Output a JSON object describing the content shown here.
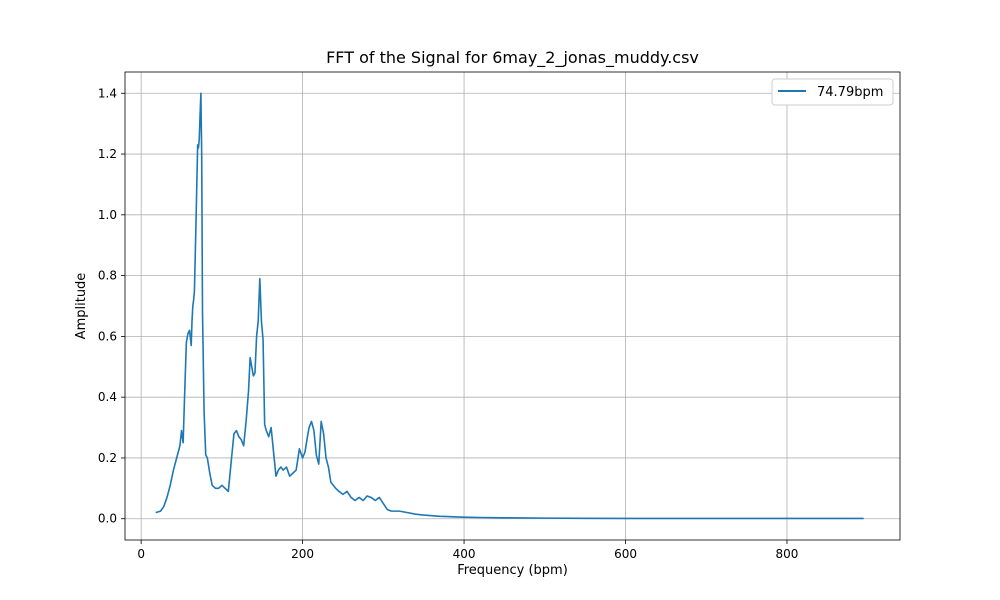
{
  "chart_data": {
    "type": "line",
    "title": "FFT of the Signal for 6may_2_jonas_muddy.csv",
    "xlabel": "Frequency (bpm)",
    "ylabel": "Amplitude",
    "xlim": [
      -20,
      940
    ],
    "ylim": [
      -0.07,
      1.47
    ],
    "xticks": [
      0,
      200,
      400,
      600,
      800
    ],
    "yticks": [
      0.0,
      0.2,
      0.4,
      0.6,
      0.8,
      1.0,
      1.2,
      1.4
    ],
    "xtick_labels": [
      "0",
      "200",
      "400",
      "600",
      "800"
    ],
    "ytick_labels": [
      "0.0",
      "0.2",
      "0.4",
      "0.6",
      "0.8",
      "1.0",
      "1.2",
      "1.4"
    ],
    "grid": true,
    "legend_position": "top-right",
    "series": [
      {
        "name": "74.79bpm",
        "color": "#1f77b4",
        "x": [
          18,
          24,
          28,
          32,
          36,
          40,
          43,
          46,
          48,
          50,
          52,
          54,
          56,
          58,
          60,
          62,
          63,
          64,
          65,
          66,
          68,
          70,
          71,
          72,
          73,
          74,
          75,
          76,
          78,
          80,
          82,
          85,
          88,
          92,
          96,
          100,
          104,
          108,
          112,
          115,
          118,
          121,
          124,
          127,
          130,
          133,
          135,
          137,
          139,
          141,
          143,
          145,
          147,
          149,
          151,
          153,
          155,
          158,
          161,
          164,
          167,
          170,
          173,
          176,
          180,
          184,
          188,
          192,
          196,
          200,
          203,
          206,
          208,
          211,
          214,
          217,
          220,
          223,
          226,
          229,
          232,
          235,
          238,
          241,
          245,
          250,
          255,
          260,
          265,
          270,
          275,
          280,
          285,
          290,
          295,
          300,
          305,
          310,
          320,
          330,
          340,
          350,
          360,
          370,
          380,
          390,
          400,
          420,
          450,
          500,
          550,
          600,
          650,
          700,
          750,
          800,
          850,
          895
        ],
        "values": [
          0.02,
          0.025,
          0.04,
          0.07,
          0.11,
          0.16,
          0.19,
          0.22,
          0.24,
          0.29,
          0.25,
          0.42,
          0.58,
          0.61,
          0.62,
          0.57,
          0.65,
          0.7,
          0.72,
          0.75,
          0.98,
          1.23,
          1.22,
          1.25,
          1.33,
          1.4,
          1.2,
          0.68,
          0.35,
          0.21,
          0.2,
          0.15,
          0.11,
          0.1,
          0.1,
          0.11,
          0.1,
          0.09,
          0.2,
          0.28,
          0.29,
          0.27,
          0.26,
          0.24,
          0.32,
          0.42,
          0.53,
          0.5,
          0.47,
          0.48,
          0.6,
          0.65,
          0.79,
          0.65,
          0.59,
          0.31,
          0.29,
          0.27,
          0.3,
          0.22,
          0.14,
          0.16,
          0.17,
          0.16,
          0.17,
          0.14,
          0.15,
          0.16,
          0.23,
          0.2,
          0.22,
          0.27,
          0.3,
          0.32,
          0.29,
          0.21,
          0.18,
          0.32,
          0.28,
          0.2,
          0.17,
          0.12,
          0.11,
          0.1,
          0.09,
          0.08,
          0.09,
          0.07,
          0.06,
          0.07,
          0.06,
          0.075,
          0.07,
          0.06,
          0.07,
          0.05,
          0.03,
          0.025,
          0.025,
          0.02,
          0.015,
          0.012,
          0.01,
          0.008,
          0.007,
          0.006,
          0.005,
          0.004,
          0.003,
          0.002,
          0.0015,
          0.001,
          0.001,
          0.001,
          0.001,
          0.001,
          0.001,
          0.001
        ]
      }
    ]
  }
}
